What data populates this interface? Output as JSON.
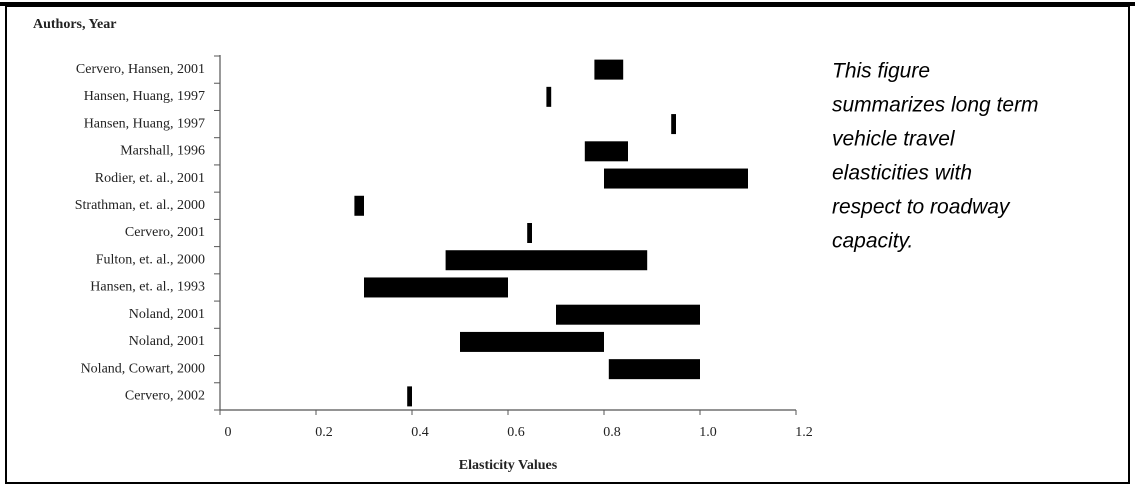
{
  "chart_data": {
    "type": "range-bar",
    "y_label": "Authors, Year",
    "x_label": "Elasticity Values",
    "categories": [
      "Cervero, Hansen, 2001",
      "Hansen, Huang, 1997",
      "Hansen, Huang, 1997",
      "Marshall, 1996",
      "Rodier, et. al., 2001",
      "Strathman, et. al., 2000",
      "Cervero, 2001",
      "Fulton, et. al., 2000",
      "Hansen, et. al., 1993",
      "Noland, 2001",
      "Noland, 2001",
      "Noland, Cowart, 2000",
      "Cervero, 2002"
    ],
    "low": [
      0.78,
      0.68,
      0.94,
      0.76,
      0.8,
      0.28,
      0.64,
      0.47,
      0.3,
      0.7,
      0.5,
      0.81,
      0.39
    ],
    "high": [
      0.84,
      0.69,
      0.95,
      0.85,
      1.1,
      0.3,
      0.65,
      0.89,
      0.6,
      1.0,
      0.8,
      1.0,
      0.4
    ],
    "color": "#000000",
    "xlim": [
      0,
      1.2
    ],
    "xticks": [
      0,
      0.2,
      0.4,
      0.6,
      0.8,
      {
        "value": 1,
        "label": "1.0"
      },
      1.2
    ],
    "note": [
      "This figure",
      "summarizes long term",
      "vehicle travel",
      "elasticities with",
      "respect to roadway",
      "capacity."
    ]
  }
}
